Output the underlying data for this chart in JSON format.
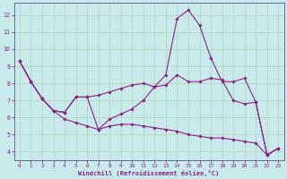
{
  "background_color": "#c8eaea",
  "grid_color": "#aaccaa",
  "line_color": "#882288",
  "xlabel": "Windchill (Refroidissement éolien,°C)",
  "x_ticks": [
    0,
    1,
    2,
    3,
    4,
    5,
    6,
    7,
    8,
    9,
    10,
    11,
    12,
    13,
    14,
    15,
    16,
    17,
    18,
    19,
    20,
    21,
    22,
    23
  ],
  "y_ticks": [
    4,
    5,
    6,
    7,
    8,
    9,
    10,
    11,
    12
  ],
  "ylim": [
    3.5,
    12.7
  ],
  "xlim": [
    -0.5,
    23.5
  ],
  "line1_y": [
    9.3,
    8.1,
    7.1,
    6.4,
    6.3,
    7.2,
    7.2,
    7.3,
    7.5,
    7.7,
    7.9,
    8.0,
    7.8,
    7.9,
    8.5,
    8.1,
    8.1,
    8.3,
    8.2,
    7.0,
    6.8,
    6.9,
    3.8,
    4.2
  ],
  "line2_y": [
    9.3,
    8.1,
    7.1,
    6.4,
    6.3,
    7.2,
    7.2,
    5.3,
    5.9,
    6.2,
    6.5,
    7.0,
    7.8,
    8.5,
    11.8,
    12.3,
    11.4,
    9.5,
    8.1,
    8.1,
    8.3,
    6.9,
    3.8,
    4.2
  ],
  "line3_y": [
    9.3,
    8.1,
    7.1,
    6.4,
    5.9,
    5.7,
    5.5,
    5.3,
    5.5,
    5.6,
    5.6,
    5.5,
    5.4,
    5.3,
    5.2,
    5.0,
    4.9,
    4.8,
    4.8,
    4.7,
    4.6,
    4.5,
    3.8,
    4.2
  ]
}
